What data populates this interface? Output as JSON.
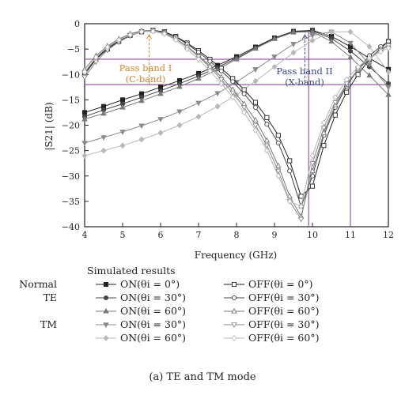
{
  "chart_data": {
    "type": "line",
    "xlabel": "Frequency (GHz)",
    "ylabel": "|S21| (dB)",
    "xlim": [
      4,
      12
    ],
    "ylim": [
      -40,
      0
    ],
    "xticks": [
      4,
      5,
      6,
      7,
      8,
      9,
      10,
      11,
      12
    ],
    "yticks": [
      0,
      -5,
      -10,
      -15,
      -20,
      -25,
      -30,
      -35,
      -40
    ],
    "grid": false,
    "legend_position": "below",
    "legend_title": "Simulated results",
    "annotations": {
      "band1": [
        "Pass band I",
        "(C-band)"
      ],
      "band2": [
        "Pass band II",
        "(X-band)"
      ]
    },
    "band1_range_dB": [
      -12,
      -7
    ],
    "band2_range_GHz": [
      9.9,
      11
    ],
    "arrow1_freq": 5.7,
    "arrow2_freq": 9.8,
    "series": [
      {
        "name": "ON(θi = 0°)",
        "group": "Normal",
        "color": "#222222",
        "marker": "square-filled",
        "x": [
          4,
          4.5,
          5,
          5.5,
          6,
          6.5,
          7,
          7.5,
          8,
          8.5,
          9,
          9.5,
          10,
          10.5,
          11,
          11.5,
          12
        ],
        "y": [
          -17.5,
          -16.3,
          -15,
          -13.8,
          -12.5,
          -11.2,
          -9.8,
          -8.2,
          -6.5,
          -4.6,
          -2.8,
          -1.5,
          -1.3,
          -2.5,
          -4.5,
          -6.8,
          -9
        ]
      },
      {
        "name": "ON(θi = 30°)",
        "group": "TE",
        "color": "#444444",
        "marker": "circle-filled",
        "x": [
          4,
          4.5,
          5,
          5.5,
          6,
          6.5,
          7,
          7.5,
          8,
          8.5,
          9,
          9.5,
          10,
          10.5,
          11,
          11.5,
          12
        ],
        "y": [
          -18.3,
          -17,
          -15.8,
          -14.5,
          -13.2,
          -11.8,
          -10.3,
          -8.6,
          -6.8,
          -4.8,
          -2.9,
          -1.6,
          -1.4,
          -2.9,
          -5.4,
          -8.5,
          -11.8
        ]
      },
      {
        "name": "ON(θi = 60°)",
        "group": "",
        "color": "#7a7a7a",
        "marker": "triangle-filled",
        "x": [
          4,
          4.5,
          5,
          5.5,
          6,
          6.5,
          7,
          7.5,
          8,
          8.5,
          9,
          9.5,
          10,
          10.5,
          11,
          11.5,
          12
        ],
        "y": [
          -18.8,
          -17.7,
          -16.5,
          -15.2,
          -13.8,
          -12.4,
          -10.8,
          -9,
          -7,
          -4.9,
          -3,
          -1.7,
          -1.6,
          -3.5,
          -6.6,
          -10.2,
          -14
        ]
      },
      {
        "name": "ON(θi = 30°)",
        "group": "TM",
        "color": "#8a8a8a",
        "marker": "triangle-down-filled",
        "x": [
          4,
          4.5,
          5,
          5.5,
          6,
          6.5,
          7,
          7.5,
          8,
          8.5,
          9,
          9.5,
          10,
          10.5,
          11,
          11.5,
          12
        ],
        "y": [
          -23.5,
          -22.4,
          -21.3,
          -20.1,
          -18.8,
          -17.3,
          -15.6,
          -13.7,
          -11.5,
          -9,
          -6.5,
          -4,
          -2.3,
          -1.6,
          -3.8,
          -8,
          -12.5
        ]
      },
      {
        "name": "ON(θi = 60°)",
        "group": "",
        "color": "#b8b8b8",
        "marker": "diamond-filled",
        "x": [
          4,
          4.5,
          5,
          5.5,
          6,
          6.5,
          7,
          7.5,
          8,
          8.5,
          9,
          9.5,
          10,
          10.5,
          11,
          11.5,
          12
        ],
        "y": [
          -26,
          -25,
          -24,
          -22.8,
          -21.5,
          -20,
          -18.3,
          -16.3,
          -14,
          -11.3,
          -8.5,
          -5.7,
          -3.3,
          -1.6,
          -1.6,
          -4.5,
          -9.5
        ]
      },
      {
        "name": "OFF(θi = 0°)",
        "group": "",
        "color": "#222222",
        "marker": "square-open",
        "x": [
          4,
          4.3,
          4.6,
          4.9,
          5.2,
          5.5,
          5.8,
          6.1,
          6.4,
          6.7,
          7,
          7.3,
          7.6,
          7.9,
          8.2,
          8.5,
          8.8,
          9.1,
          9.4,
          9.7,
          10,
          10.3,
          10.6,
          10.9,
          11.2,
          11.5,
          11.8,
          12
        ],
        "y": [
          -10,
          -7,
          -5,
          -3.5,
          -2.3,
          -1.6,
          -1.3,
          -1.6,
          -2.5,
          -3.8,
          -5.3,
          -7,
          -8.8,
          -10.8,
          -13,
          -15.5,
          -18.5,
          -22,
          -27,
          -34,
          -32,
          -24,
          -18,
          -13.5,
          -10,
          -7,
          -4.8,
          -3.5
        ]
      },
      {
        "name": "OFF(θi = 30°)",
        "group": "",
        "color": "#444444",
        "marker": "circle-open",
        "x": [
          4,
          4.3,
          4.6,
          4.9,
          5.2,
          5.5,
          5.8,
          6.1,
          6.4,
          6.7,
          7,
          7.3,
          7.6,
          7.9,
          8.2,
          8.5,
          8.8,
          9.1,
          9.4,
          9.7,
          10,
          10.3,
          10.6,
          10.9,
          11.2,
          11.5,
          11.8,
          12
        ],
        "y": [
          -9.7,
          -6.8,
          -4.8,
          -3.3,
          -2.2,
          -1.5,
          -1.3,
          -1.7,
          -2.6,
          -4,
          -5.6,
          -7.4,
          -9.3,
          -11.4,
          -13.8,
          -16.5,
          -19.8,
          -23.5,
          -29,
          -36,
          -30,
          -22,
          -16.5,
          -12.3,
          -9,
          -6.3,
          -4.5,
          -3.5
        ]
      },
      {
        "name": "OFF(θi = 60°)",
        "group": "",
        "color": "#7a7a7a",
        "marker": "triangle-open",
        "x": [
          4,
          4.3,
          4.6,
          4.9,
          5.2,
          5.5,
          5.8,
          6.1,
          6.4,
          6.7,
          7,
          7.3,
          7.6,
          7.9,
          8.2,
          8.5,
          8.8,
          9.1,
          9.4,
          9.7,
          10,
          10.3,
          10.6,
          10.9,
          11.2,
          11.5,
          11.8,
          12
        ],
        "y": [
          -9,
          -6.3,
          -4.4,
          -3,
          -2,
          -1.4,
          -1.3,
          -1.8,
          -2.9,
          -4.5,
          -6.3,
          -8.3,
          -10.5,
          -13,
          -15.8,
          -19,
          -23,
          -28,
          -34,
          -38,
          -29,
          -21.5,
          -16,
          -12,
          -9,
          -6.8,
          -5,
          -4.2
        ]
      },
      {
        "name": "OFF(θi = 30°)",
        "group": "",
        "color": "#8a8a8a",
        "marker": "triangle-down-open",
        "x": [
          4,
          4.3,
          4.6,
          4.9,
          5.2,
          5.5,
          5.8,
          6.1,
          6.4,
          6.7,
          7,
          7.3,
          7.6,
          7.9,
          8.2,
          8.5,
          8.8,
          9.1,
          9.4,
          9.7,
          10,
          10.3,
          10.6,
          10.9,
          11.2,
          11.5,
          11.8,
          12
        ],
        "y": [
          -10.5,
          -7.5,
          -5.2,
          -3.6,
          -2.4,
          -1.6,
          -1.4,
          -1.9,
          -3,
          -4.6,
          -6.5,
          -8.6,
          -11,
          -13.6,
          -16.5,
          -20,
          -24,
          -29,
          -35,
          -38.5,
          -27.5,
          -20.5,
          -15.5,
          -11.8,
          -9,
          -7,
          -5.3,
          -4.3
        ]
      },
      {
        "name": "OFF(θi = 60°)",
        "group": "",
        "color": "#b8b8b8",
        "marker": "diamond-open",
        "x": [
          4,
          4.3,
          4.6,
          4.9,
          5.2,
          5.5,
          5.8,
          6.1,
          6.4,
          6.7,
          7,
          7.3,
          7.6,
          7.9,
          8.2,
          8.5,
          8.8,
          9.1,
          9.4,
          9.7,
          10,
          10.3,
          10.6,
          10.9,
          11.2,
          11.5,
          11.8,
          12
        ],
        "y": [
          -9.5,
          -6.6,
          -4.6,
          -3.2,
          -2.2,
          -1.6,
          -1.5,
          -2,
          -3.2,
          -5,
          -7,
          -9.3,
          -11.8,
          -14.5,
          -17.5,
          -21,
          -25,
          -30,
          -35,
          -36,
          -26,
          -19.5,
          -14.5,
          -11,
          -8.5,
          -6.8,
          -5.5,
          -4.8
        ]
      }
    ]
  },
  "legend": {
    "title": "Simulated results",
    "groups": [
      "Normal",
      "TE",
      "TM"
    ]
  },
  "caption": "(a) TE and TM mode",
  "colors": {
    "accent_purple": "#7a3b8e",
    "annotation_orange": "#d9822b",
    "annotation_blue": "#3b4a8a"
  }
}
